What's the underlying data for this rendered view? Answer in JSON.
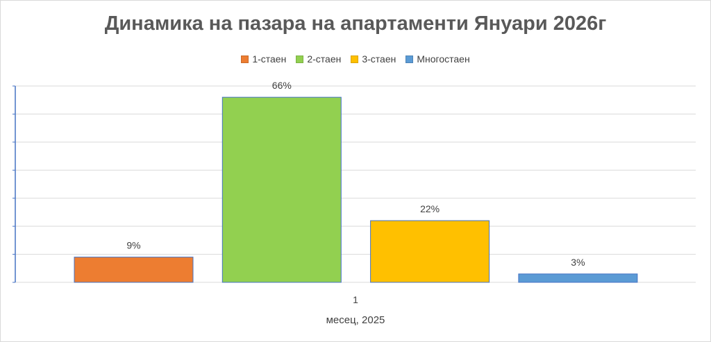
{
  "title": "Динамика на пазара на апартаменти Януари 2026г",
  "chart_data": {
    "type": "bar",
    "categories": [
      "1"
    ],
    "series": [
      {
        "name": "1-стаен",
        "values": [
          9
        ],
        "label": "9%",
        "color": "#ED7D31"
      },
      {
        "name": "2-стаен",
        "values": [
          66
        ],
        "label": "66%",
        "color": "#92D050"
      },
      {
        "name": "3-стаен",
        "values": [
          22
        ],
        "label": "22%",
        "color": "#FFC000"
      },
      {
        "name": "Многостаен",
        "values": [
          3
        ],
        "label": "3%",
        "color": "#5B9BD5"
      }
    ],
    "xlabel": "месец, 2025",
    "ylabel": "",
    "ylim": [
      0,
      70
    ],
    "grid": true,
    "legend": "top"
  }
}
